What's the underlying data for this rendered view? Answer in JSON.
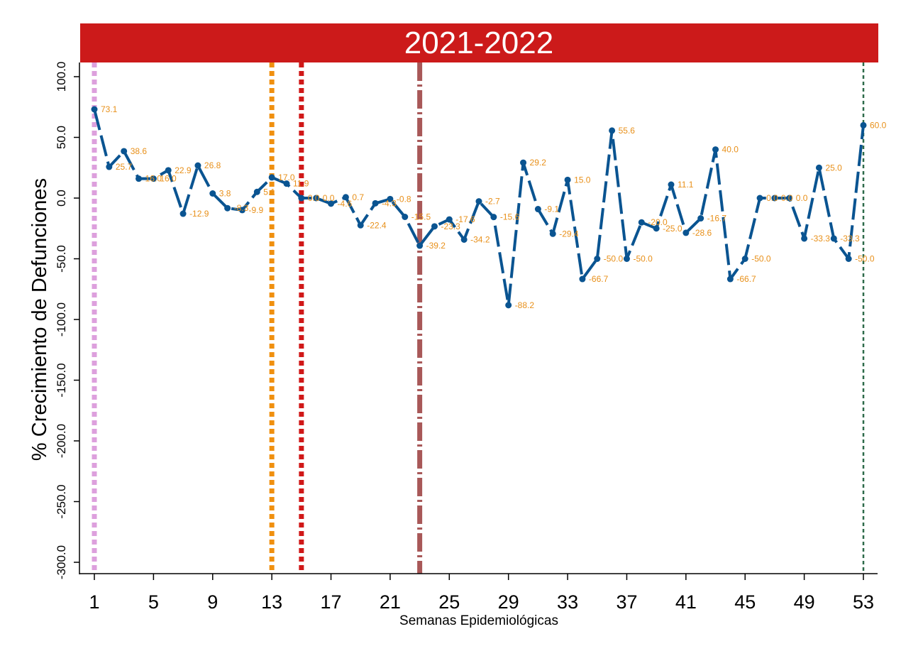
{
  "chart_data": {
    "type": "line",
    "title": "2021-2022",
    "xlabel": "Semanas Epidemiológicas",
    "ylabel": "% Crecimiento de Defunciones",
    "xlim": [
      1,
      53
    ],
    "ylim": [
      -300,
      100
    ],
    "xticks": [
      "1",
      "5",
      "9",
      "13",
      "17",
      "21",
      "25",
      "29",
      "33",
      "37",
      "41",
      "45",
      "49",
      "53"
    ],
    "yticks": [
      "100.0",
      "50.0",
      "0.0",
      "-50.0",
      "-100.0",
      "-150.0",
      "-200.0",
      "-250.0",
      "-300.0"
    ],
    "x": [
      1,
      2,
      3,
      4,
      5,
      6,
      7,
      8,
      9,
      10,
      11,
      12,
      13,
      14,
      15,
      16,
      17,
      18,
      19,
      20,
      21,
      22,
      23,
      24,
      25,
      26,
      27,
      28,
      29,
      30,
      31,
      32,
      33,
      34,
      35,
      36,
      37,
      38,
      39,
      40,
      41,
      42,
      43,
      44,
      45,
      46,
      47,
      48,
      49,
      50,
      51,
      52,
      53
    ],
    "values": [
      73.1,
      25.7,
      38.6,
      16.0,
      16.0,
      22.9,
      -12.9,
      26.8,
      3.8,
      -8.3,
      -9.9,
      5.1,
      17.0,
      11.9,
      0.0,
      0.0,
      -4.6,
      0.7,
      -22.4,
      -4.3,
      -0.8,
      -15.5,
      -39.2,
      -23.3,
      -17.6,
      -34.2,
      -2.7,
      -15.6,
      -88.2,
      29.2,
      -9.1,
      -29.4,
      15.0,
      -66.7,
      -50.0,
      55.6,
      -50.0,
      -20.0,
      -25.0,
      11.1,
      -28.6,
      -16.7,
      40.0,
      -66.7,
      -50.0,
      0.0,
      0.0,
      0.0,
      -33.3,
      25.0,
      -33.3,
      -50.0,
      60.0
    ],
    "data_labels": [
      "73.1",
      "25.7",
      "38.6",
      "16.0",
      "16.0",
      "22.9",
      "-12.9",
      "26.8",
      "3.8",
      "-8.3",
      "-9.9",
      "5.1",
      "17.0",
      "11.9",
      "0.0",
      "0.0",
      "-4.6",
      "0.7",
      "-22.4",
      "-4.3",
      "-0.8",
      "-15.5",
      "-39.2",
      "-23.3",
      "-17.6",
      "-34.2",
      "-2.7",
      "-15.6",
      "-88.2",
      "29.2",
      "-9.1",
      "-29.4",
      "15.0",
      "-66.7",
      "-50.0",
      "55.6",
      "-50.0",
      "-20.0",
      "-25.0",
      "11.1",
      "-28.6",
      "-16.7",
      "40.0",
      "-66.7",
      "-50.0",
      "0.0",
      "0.0",
      "0.0",
      "-33.3",
      "25.0",
      "-33.3",
      "-50.0",
      "60.0"
    ],
    "vertical_lines": [
      {
        "x": 1,
        "color": "#dda0dd",
        "style": "dotted"
      },
      {
        "x": 13,
        "color": "#f0900f",
        "style": "dotted"
      },
      {
        "x": 15,
        "color": "#d01818",
        "style": "dotted"
      },
      {
        "x": 23,
        "color": "#a85858",
        "style": "dashdot"
      },
      {
        "x": 53,
        "color": "#2e6b4a",
        "style": "dashed"
      }
    ],
    "colors": {
      "line": "#0a5491",
      "data_labels": "#e8901a",
      "banner": "#cc1a1a"
    },
    "grid": false
  }
}
